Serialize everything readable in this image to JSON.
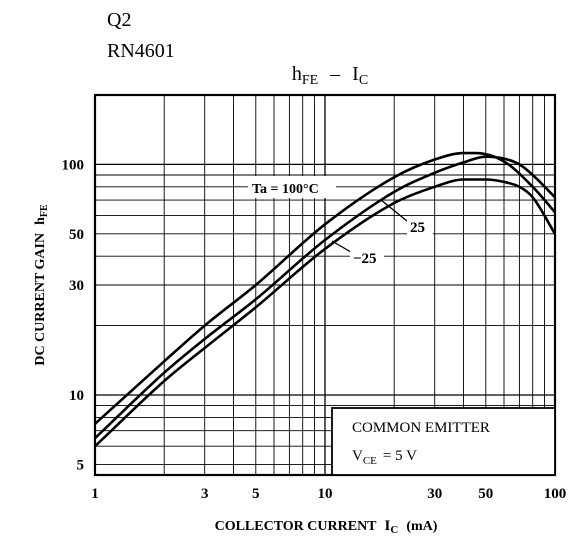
{
  "header": {
    "device": "Q2",
    "part_number": "RN4601"
  },
  "chart_data": {
    "type": "line",
    "title": {
      "main": "h",
      "main_sub": "FE",
      "dash": "–",
      "var": "I",
      "var_sub": "C"
    },
    "xlabel": {
      "text": "COLLECTOR CURRENT",
      "var": "I",
      "var_sub": "C",
      "unit": "(mA)"
    },
    "ylabel": {
      "text": "DC CURRENT GAIN",
      "var": "h",
      "var_sub": "FE"
    },
    "xscale": "log",
    "yscale": "log",
    "xlim": [
      1,
      100
    ],
    "ylim": [
      4.5,
      200
    ],
    "xticks": [
      1,
      3,
      5,
      10,
      30,
      50,
      100
    ],
    "xtick_labels": [
      "1",
      "3",
      "5",
      "10",
      "30",
      "50",
      "100"
    ],
    "yticks": [
      5,
      10,
      30,
      50,
      100
    ],
    "ytick_labels": [
      "5",
      "10",
      "30",
      "50",
      "100"
    ],
    "grid": true,
    "series": [
      {
        "name": "Ta = 100°C",
        "x": [
          1,
          2,
          3,
          5,
          10,
          20,
          30,
          40,
          45,
          60,
          80,
          100
        ],
        "y": [
          7.5,
          14,
          20,
          30,
          55,
          88,
          105,
          112,
          112,
          103,
          80,
          62
        ]
      },
      {
        "name": "25",
        "x": [
          1,
          2,
          3,
          5,
          10,
          20,
          30,
          40,
          50,
          60,
          70,
          80,
          100
        ],
        "y": [
          6.5,
          12.5,
          17.5,
          26,
          47,
          76,
          92,
          102,
          108,
          106,
          100,
          90,
          72
        ]
      },
      {
        "name": "−25",
        "x": [
          1,
          2,
          3,
          5,
          10,
          20,
          30,
          40,
          50,
          60,
          70,
          80,
          100
        ],
        "y": [
          6,
          11.5,
          16,
          24,
          43,
          68,
          80,
          86,
          86,
          84,
          80,
          72,
          50
        ]
      }
    ],
    "annotations": {
      "condition_title": "COMMON EMITTER",
      "condition_var": "V",
      "condition_sub": "CE",
      "condition_value": "= 5 V"
    }
  }
}
